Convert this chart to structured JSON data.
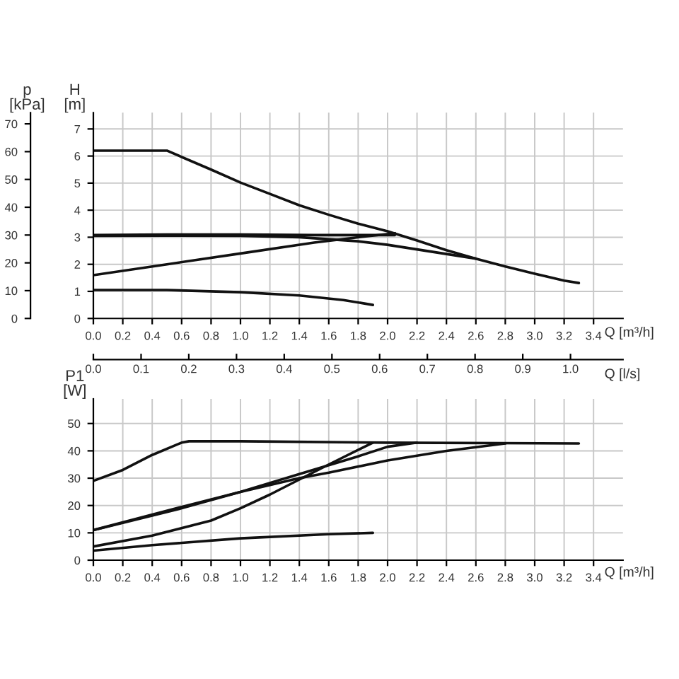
{
  "chart_data": [
    {
      "type": "line",
      "xlabel": "Q [m³/h]",
      "ylabel": "H\n[m]",
      "y2label": "p\n[kPa]",
      "grid": true,
      "xlim": [
        0,
        3.6
      ],
      "xticks": [
        {
          "value": 0,
          "label": "0.0"
        },
        0.2,
        0.4,
        0.6,
        0.8,
        {
          "value": 1,
          "label": "1.0"
        },
        1.2,
        1.4,
        1.6,
        1.8,
        {
          "value": 2,
          "label": "2.0"
        },
        2.2,
        2.4,
        2.6,
        2.8,
        {
          "value": 3,
          "label": "3.0"
        },
        3.2,
        3.4
      ],
      "ylim": [
        0,
        7.6
      ],
      "yticks": [
        0,
        1,
        2,
        3,
        4,
        5,
        6,
        7
      ],
      "y2lim": [
        0,
        74
      ],
      "y2ticks": [
        0,
        10,
        20,
        30,
        40,
        50,
        60,
        70
      ],
      "series": [
        {
          "color": "#111111",
          "x": [
            0,
            0.5,
            0.8,
            1.0,
            1.2,
            1.4,
            1.6,
            1.8,
            2.0,
            2.2,
            2.4,
            2.6,
            2.8,
            3.0,
            3.2,
            3.3
          ],
          "values": [
            6.2,
            6.2,
            5.5,
            5.02,
            4.6,
            4.18,
            3.83,
            3.5,
            3.22,
            2.88,
            2.52,
            2.21,
            1.92,
            1.65,
            1.4,
            1.31
          ]
        },
        {
          "color": "#111111",
          "x": [
            0,
            0.5,
            1.0,
            1.5,
            2.05
          ],
          "values": [
            3.08,
            3.1,
            3.1,
            3.08,
            3.08
          ]
        },
        {
          "color": "#111111",
          "x": [
            0,
            0.5,
            1.0,
            1.4,
            1.8,
            2.0,
            2.2,
            2.4,
            2.6
          ],
          "values": [
            3.05,
            3.06,
            3.05,
            3.0,
            2.85,
            2.72,
            2.55,
            2.38,
            2.21
          ]
        },
        {
          "color": "#111111",
          "x": [
            0,
            0.5,
            1.0,
            1.5,
            1.8,
            2.05
          ],
          "values": [
            1.6,
            2.0,
            2.4,
            2.8,
            3.0,
            3.15
          ]
        },
        {
          "color": "#111111",
          "x": [
            0,
            0.5,
            1.0,
            1.4,
            1.7,
            1.9
          ],
          "values": [
            1.05,
            1.05,
            0.97,
            0.85,
            0.68,
            0.5
          ]
        }
      ]
    },
    {
      "type": "line",
      "xlabel": "Q [m³/h]",
      "ylabel": "P1\n[W]",
      "x2label": "Q [l/s]",
      "grid": true,
      "xlim": [
        0,
        3.6
      ],
      "xticks": [
        {
          "value": 0,
          "label": "0.0"
        },
        0.2,
        0.4,
        0.6,
        0.8,
        {
          "value": 1,
          "label": "1.0"
        },
        1.2,
        1.4,
        1.6,
        1.8,
        {
          "value": 2,
          "label": "2.0"
        },
        2.2,
        2.4,
        2.6,
        2.8,
        {
          "value": 3,
          "label": "3.0"
        },
        3.2,
        3.4
      ],
      "x2lim": [
        0,
        1.11
      ],
      "x2ticks": [
        {
          "value": 0,
          "label": "0.0"
        },
        0.1,
        0.2,
        0.3,
        0.4,
        0.5,
        0.6,
        0.7,
        0.8,
        0.9,
        {
          "value": 1,
          "label": "1.0"
        }
      ],
      "ylim": [
        0,
        59
      ],
      "yticks": [
        0,
        10,
        20,
        30,
        40,
        50
      ],
      "series": [
        {
          "color": "#111111",
          "x": [
            0,
            0.2,
            0.4,
            0.6,
            0.65,
            1.0,
            2.0,
            3.3
          ],
          "values": [
            29,
            33,
            38.5,
            43,
            43.5,
            43.5,
            43,
            42.7
          ]
        },
        {
          "color": "#111111",
          "x": [
            0,
            0.6,
            1.0,
            1.4,
            1.8,
            2.0,
            2.2
          ],
          "values": [
            11,
            19.5,
            25,
            31.5,
            38,
            41.5,
            43
          ]
        },
        {
          "color": "#111111",
          "x": [
            0,
            0.6,
            1.0,
            1.4,
            1.6,
            2.0,
            2.4,
            2.8
          ],
          "values": [
            11,
            19,
            25,
            30,
            32,
            36.5,
            40,
            42.7
          ]
        },
        {
          "color": "#111111",
          "x": [
            0,
            0.4,
            0.8,
            1.0,
            1.2,
            1.4,
            1.6,
            1.9
          ],
          "values": [
            5,
            9,
            14.5,
            19,
            24,
            29.5,
            35,
            43
          ]
        },
        {
          "color": "#111111",
          "x": [
            0,
            0.4,
            1.0,
            1.6,
            1.9
          ],
          "values": [
            3.5,
            5.5,
            8,
            9.5,
            10
          ]
        }
      ]
    }
  ]
}
